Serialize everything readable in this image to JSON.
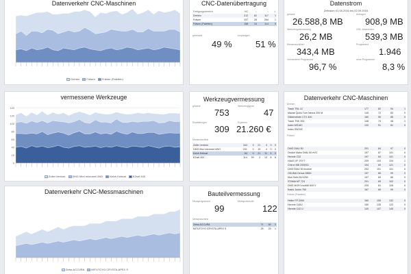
{
  "colors": {
    "dark": "#3a5f9a",
    "mid": "#6f8fc2",
    "light": "#a9bde0",
    "pale": "#d4dff0",
    "highlight": "#c9d6ea"
  },
  "panels": {
    "datenverkehr_cnc": {
      "title": "Datenverkehr CNC-Maschinen",
      "legend": [
        "Drehen",
        "Fräsen",
        "Fräsen (Paletten)"
      ]
    },
    "vermessene": {
      "title": "vermessene Werkzeuge",
      "legend": [
        "Zoller venturo",
        "DMG Mori microset UNO",
        "Kelch Kelmat",
        "EZset 400"
      ]
    },
    "messmaschinen": {
      "title": "Datenverkehr CNC-Messmaschinen",
      "legend": [
        "Zeiss ACCURA",
        "MITUTOYO CRYSTA-APEX S"
      ]
    },
    "uebertragung": {
      "title": "CNC-Datenübertragung",
      "headers": [
        "Fertigungsbereich",
        "NC",
        "",
        "",
        ""
      ],
      "rows": [
        [
          "Drehen",
          "212",
          "82",
          "117",
          "1"
        ],
        [
          "Fräsen",
          "337",
          "28",
          "264",
          "1"
        ],
        [
          "Fräsen (Paletten)",
          "158",
          "16",
          "114",
          "0"
        ]
      ],
      "label_a": "gesendet",
      "label_b": "empfangen",
      "pct_a": "49 %",
      "pct_b": "51 %"
    },
    "datenstrom": {
      "title": "Datenstrom",
      "subtitle": "Zeitraum 01.08.2016 bis 02.09.2016",
      "label1": "gesamt",
      "label2": "Anfragen",
      "v1": "26.588,8 MB",
      "v2": "908,9 MB",
      "label3": "Werkzeugvermessung",
      "label4": "CNC-Maschinen",
      "v3": "26,2 MB",
      "v4": "539,3 MB",
      "label5": "Messmaschinen",
      "label6": "Programme",
      "v5": "343,4 MB",
      "v6": "1.946",
      "label7": "Vorhandene Programme",
      "label8": "neue Programme",
      "v7": "96,7 %",
      "v8": "8,3 %"
    },
    "werkzeugvermessung": {
      "title": "Werkzeugvermessung",
      "label1": "gesamt",
      "label2": "Werkzeugtypen",
      "v1": "753",
      "v2": "47",
      "label3": "Einstellungen",
      "label4": "Ergebnis",
      "v3": "309",
      "v4": "21.260 €",
      "rows": [
        [
          "Zoller venturo",
          "344",
          "0",
          "21",
          "4",
          "0",
          "0"
        ],
        [
          "DMG Mori microset UNO",
          "231",
          "0",
          "15",
          "4",
          "0",
          "0"
        ],
        [
          "Kelch Kelmat",
          "64",
          "0",
          "21",
          "11",
          "4",
          "0"
        ],
        [
          "EZset 400",
          "114",
          "99",
          "2",
          "14",
          "8",
          "8"
        ]
      ],
      "table_label": "Messmaschine"
    },
    "bauteilvermessung": {
      "title": "Bauteilvermessung",
      "label1": "Messprogramme",
      "label2": "Messprotokolle",
      "v1": "99",
      "v2": "122",
      "table_label": "Messmaschine",
      "rows": [
        [
          "Zeiss ACCURA",
          "71",
          "82",
          "0"
        ],
        [
          "MITUTOYO CRYSTA-APEX S",
          "28",
          "29",
          "1"
        ]
      ]
    },
    "datenverkehr_list": {
      "title": "Datenverkehr CNC-Maschinen",
      "group1": "Drehen",
      "rows1": [
        [
          "Traub TNL 12",
          "177",
          "82",
          "94",
          "1"
        ],
        [
          "Mazak Quick Turn Nexus 200 M",
          "145",
          "72",
          "83",
          "0"
        ],
        [
          "Gildemeister CTX 400",
          "160",
          "55",
          "85",
          "0"
        ],
        [
          "Traub TNK 300",
          "148",
          "74",
          "48",
          "1"
        ],
        [
          "Index MS16C",
          "132",
          "51",
          "81",
          "0"
        ],
        [
          "Index SW200",
          "",
          "",
          "",
          ""
        ]
      ],
      "group2": "Fräsen",
      "rows2": [
        [
          "DMG DMU 50",
          "201",
          "84",
          "97",
          "0"
        ],
        [
          "Deckel Maho DMU 50 eVO",
          "157",
          "87",
          "101",
          "0"
        ],
        [
          "Hermle C32",
          "197",
          "84",
          "101",
          "0"
        ],
        [
          "HAAS VF 2SYT",
          "209",
          "104",
          "104",
          "1"
        ],
        [
          "Chiron Mill 2000/01",
          "104",
          "60",
          "121",
          "0"
        ],
        [
          "DMG DMU 50 ecoline",
          "252",
          "101",
          "101",
          "0"
        ],
        [
          "OKUMA Genos M560",
          "197",
          "85",
          "99",
          "0"
        ],
        [
          "Mori Seiki NV4250",
          "197",
          "69",
          "86",
          "0"
        ],
        [
          "STAMA MT 724",
          "201",
          "89",
          "102",
          "0"
        ],
        [
          "DMG MORI ecoMill 600 V",
          "205",
          "81",
          "105",
          "0"
        ],
        [
          "Kasto Junior 760",
          "167",
          "69",
          "99",
          "0"
        ]
      ],
      "group3": "Fräsen (Paletten)",
      "rows3": [
        [
          "Heller FP 2000",
          "160",
          "105",
          "132",
          "0"
        ],
        [
          "Hermle C40U",
          "150",
          "135",
          "122",
          "0"
        ],
        [
          "Hermle C42 U",
          "140",
          "107",
          "145",
          "0"
        ]
      ]
    }
  },
  "chart_data": [
    {
      "type": "area",
      "title": "Datenverkehr CNC-Maschinen",
      "series": [
        {
          "name": "Drehen",
          "values": [
            14,
            15,
            13,
            16,
            14,
            15,
            17,
            14,
            13,
            16,
            15,
            14,
            16,
            17,
            15,
            14,
            13,
            15,
            16,
            14,
            15,
            17,
            16,
            14,
            15,
            16,
            14,
            15,
            17,
            16,
            15,
            14
          ]
        },
        {
          "name": "Fräsen",
          "values": [
            18,
            20,
            17,
            19,
            21,
            18,
            20,
            22,
            19,
            18,
            21,
            20,
            19,
            22,
            21,
            18,
            20,
            19,
            21,
            22,
            20,
            18,
            21,
            20,
            19,
            22,
            21,
            20,
            18,
            21,
            22,
            20
          ]
        },
        {
          "name": "Fräsen (Paletten)",
          "values": [
            20,
            18,
            22,
            19,
            21,
            23,
            20,
            18,
            22,
            21,
            19,
            23,
            22,
            20,
            21,
            19,
            23,
            21,
            20,
            22,
            19,
            21,
            23,
            20,
            22,
            21,
            19,
            23,
            21,
            20,
            22,
            21
          ]
        }
      ],
      "ylim": [
        0,
        60
      ]
    },
    {
      "type": "area",
      "title": "vermessene Werkzeuge",
      "yticks": [
        0,
        20,
        40,
        60,
        80,
        100,
        120,
        140
      ],
      "series": [
        {
          "name": "Zoller venturo",
          "values": [
            40,
            42,
            38,
            44,
            40,
            43,
            39,
            41,
            45,
            40,
            38,
            42,
            44,
            40,
            41,
            43,
            39,
            42,
            40,
            44,
            41,
            39,
            43,
            42,
            40,
            44,
            41,
            38,
            42,
            43,
            40,
            41
          ]
        },
        {
          "name": "DMG Mori microset UNO",
          "values": [
            35,
            33,
            36,
            32,
            34,
            37,
            33,
            35,
            34,
            36,
            33,
            35,
            37,
            34,
            33,
            36,
            35,
            34,
            33,
            37,
            35,
            34,
            36,
            33,
            35,
            34,
            37,
            35,
            33,
            34,
            36,
            35
          ]
        },
        {
          "name": "Kelch Kelmat",
          "values": [
            28,
            30,
            27,
            31,
            29,
            28,
            30,
            32,
            27,
            29,
            31,
            28,
            30,
            29,
            27,
            31,
            30,
            28,
            29,
            31,
            28,
            30,
            27,
            29,
            31,
            28,
            30,
            29,
            28,
            31,
            29,
            30
          ]
        },
        {
          "name": "EZset 400",
          "values": [
            20,
            23,
            18,
            22,
            19,
            24,
            20,
            21,
            18,
            23,
            19,
            22,
            20,
            24,
            21,
            19,
            22,
            20,
            23,
            18,
            22,
            21,
            19,
            24,
            20,
            22,
            18,
            23,
            21,
            19,
            22,
            20
          ]
        }
      ],
      "ylim": [
        0,
        150
      ]
    },
    {
      "type": "area",
      "title": "Datenverkehr CNC-Messmaschinen",
      "series": [
        {
          "name": "Zeiss ACCURA",
          "values": [
            10,
            11,
            12,
            11,
            12,
            13,
            12,
            13,
            14,
            13,
            14,
            15,
            14,
            15,
            16,
            15,
            16,
            17,
            16,
            17,
            18,
            17,
            18,
            19,
            18,
            19,
            20,
            19,
            20,
            21,
            20,
            21
          ]
        },
        {
          "name": "MITUTOYO CRYSTA-APEX S",
          "values": [
            8,
            9,
            10,
            9,
            10,
            11,
            10,
            11,
            12,
            11,
            12,
            12,
            13,
            12,
            13,
            14,
            13,
            14,
            15,
            14,
            15,
            16,
            15,
            16,
            17,
            16,
            17,
            18,
            17,
            18,
            19,
            20
          ]
        }
      ],
      "ylim": [
        0,
        50
      ]
    }
  ]
}
